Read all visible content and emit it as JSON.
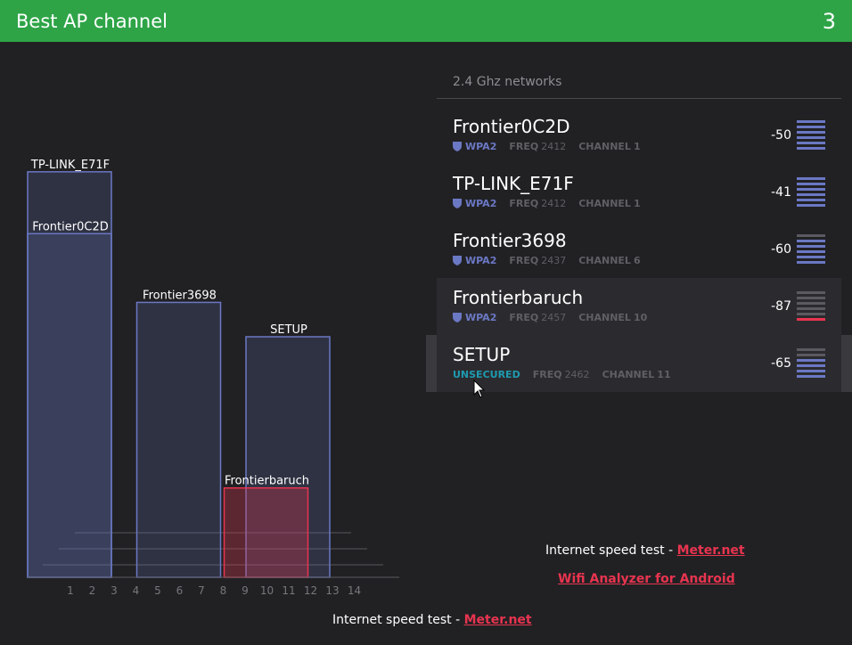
{
  "header": {
    "title": "Best AP channel",
    "best_channel": "3"
  },
  "colors": {
    "header_bg": "#2ea447",
    "background": "#212124",
    "secured_bar": "#6b78c4",
    "weak_signal": "#e8344f",
    "unsecured_text": "#1e9bb0",
    "link": "#e8344f"
  },
  "network_list": {
    "section_label": "2.4 Ghz networks",
    "freq_label": "FREQ",
    "channel_label": "CHANNEL",
    "items": [
      {
        "ssid": "Frontier0C2D",
        "security": "WPA2",
        "freq": "2412",
        "channel": "1",
        "rssi": "-50",
        "signal_level": 6,
        "icon": "shield-icon"
      },
      {
        "ssid": "TP-LINK_E71F",
        "security": "WPA2",
        "freq": "2412",
        "channel": "1",
        "rssi": "-41",
        "signal_level": 6,
        "icon": "shield-icon"
      },
      {
        "ssid": "Frontier3698",
        "security": "WPA2",
        "freq": "2437",
        "channel": "6",
        "rssi": "-60",
        "signal_level": 5,
        "icon": "shield-icon"
      },
      {
        "ssid": "Frontierbaruch",
        "security": "WPA2",
        "freq": "2457",
        "channel": "10",
        "rssi": "-87",
        "signal_level": 1,
        "icon": "shield-icon"
      },
      {
        "ssid": "SETUP",
        "security": "UNSECURED",
        "freq": "2462",
        "channel": "11",
        "rssi": "-65",
        "signal_level": 4
      }
    ]
  },
  "chart_data": {
    "type": "bar",
    "x_ticks": [
      "1",
      "2",
      "3",
      "4",
      "5",
      "6",
      "7",
      "8",
      "9",
      "10",
      "11",
      "12",
      "13",
      "14"
    ],
    "y_range": [
      -100,
      -30
    ],
    "series": [
      {
        "name": "TP-LINK_E71F",
        "channel": 1,
        "rssi": -41,
        "weak": false
      },
      {
        "name": "Frontier0C2D",
        "channel": 1,
        "rssi": -50,
        "weak": false
      },
      {
        "name": "Frontier3698",
        "channel": 6,
        "rssi": -60,
        "weak": false
      },
      {
        "name": "SETUP",
        "channel": 11,
        "rssi": -65,
        "weak": false
      },
      {
        "name": "Frontierbaruch",
        "channel": 10,
        "rssi": -87,
        "weak": true
      }
    ]
  },
  "footer": {
    "speed_test_label": "Internet speed test - ",
    "speed_test_link": "Meter.net",
    "android_link": "Wifi Analyzer for Android"
  }
}
